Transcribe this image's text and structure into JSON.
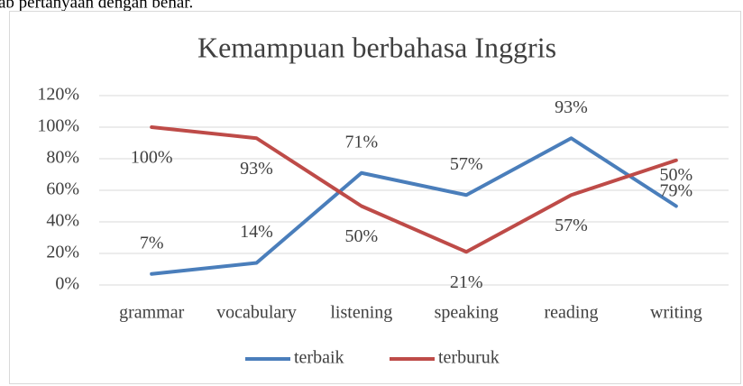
{
  "header_text": "ab pertanyaan dengan benar.",
  "chart_data": {
    "type": "line",
    "title": "Kemampuan berbahasa Inggris",
    "categories": [
      "grammar",
      "vocabulary",
      "listening",
      "speaking",
      "reading",
      "writing"
    ],
    "series": [
      {
        "name": "terbaik",
        "color": "#4a7ebb",
        "values": [
          7,
          14,
          71,
          57,
          93,
          50
        ],
        "value_labels": [
          "7%",
          "14%",
          "71%",
          "57%",
          "93%",
          "50%"
        ]
      },
      {
        "name": "terburuk",
        "color": "#be4b48",
        "values": [
          100,
          93,
          50,
          21,
          57,
          79
        ],
        "value_labels": [
          "100%",
          "93%",
          "50%",
          "21%",
          "57%",
          "79%"
        ]
      }
    ],
    "ylim": [
      0,
      120
    ],
    "yticks": [
      {
        "value": 0,
        "label": "0%"
      },
      {
        "value": 20,
        "label": "20%"
      },
      {
        "value": 40,
        "label": "40%"
      },
      {
        "value": 60,
        "label": "60%"
      },
      {
        "value": 80,
        "label": "80%"
      },
      {
        "value": 100,
        "label": "100%"
      },
      {
        "value": 120,
        "label": "120%"
      }
    ],
    "grid": true,
    "legend": "bottom"
  }
}
